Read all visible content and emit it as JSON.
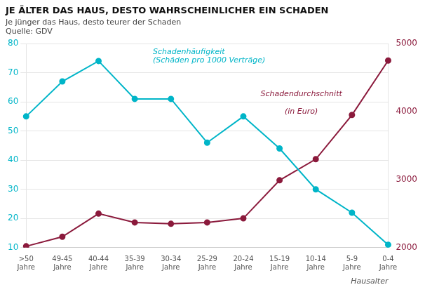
{
  "chart_data": {
    "type": "line",
    "title": "JE ÄLTER DAS HAUS, DESTO WAHRSCHEINLICHER EIN SCHADEN",
    "subtitle": "Je jünger das Haus, desto teurer der Schaden",
    "source": "Quelle: GDV",
    "xlabel": "Hausalter",
    "categories": [
      ">50\nJahre",
      "49-45\nJahre",
      "40-44\nJahre",
      "35-39\nJahre",
      "30-34\nJahre",
      "25-29\nJahre",
      "20-24\nJahre",
      "15-19\nJahre",
      "10-14\nJahre",
      "5-9\nJahre",
      "0-4\nJahre"
    ],
    "series": [
      {
        "color": "#00B5C8",
        "marker": "o",
        "values": [
          55,
          67,
          74,
          61,
          61,
          46,
          55,
          44,
          30,
          22,
          11
        ]
      },
      {
        "color": "#8B1A3C",
        "marker": "o",
        "axis": "y2",
        "values": [
          2020,
          2160,
          2500,
          2370,
          2350,
          2370,
          2430,
          2990,
          3300,
          3950,
          4750
        ]
      }
    ],
    "ylim": [
      10,
      80
    ],
    "yticks": [
      10,
      20,
      30,
      40,
      50,
      60,
      70,
      80
    ],
    "y2lim": [
      2000,
      5000
    ],
    "y2ticks": [
      2000,
      3000,
      4000,
      5000
    ],
    "grid": true,
    "annotations": [
      {
        "text": "Schadenhäufigkeit",
        "x": 3.5,
        "y": 78.5,
        "color": "#00B5C8"
      },
      {
        "text": "(Schäden pro 1000 Verträge)",
        "x": 3.5,
        "y": 75.5,
        "color": "#00B5C8"
      },
      {
        "text": "Schadendurchschnitt",
        "x": 7.6,
        "y": 4200,
        "axis": "y2",
        "color": "#8B1A3C"
      },
      {
        "text": "(in Euro)",
        "x": 7.6,
        "y": 4050,
        "axis": "y2",
        "color": "#8B1A3C"
      }
    ]
  }
}
